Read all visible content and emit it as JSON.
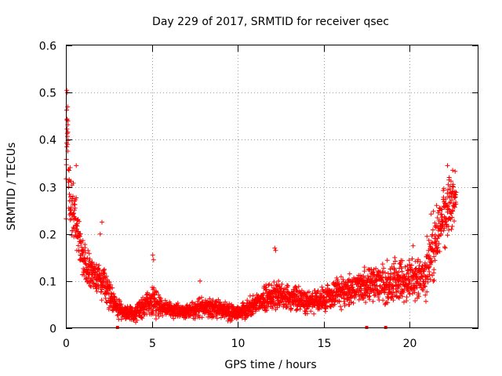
{
  "chart_data": {
    "type": "scatter",
    "title": "Day 229 of 2017, SRMTID for receiver qsec",
    "xlabel": "GPS time / hours",
    "ylabel": "SRMTID / TECUs",
    "xlim": [
      0,
      24
    ],
    "ylim": [
      0,
      0.6
    ],
    "x_ticks": [
      0,
      5,
      10,
      15,
      20
    ],
    "x_tick_labels": [
      "0",
      "5",
      "10",
      "15",
      "20"
    ],
    "y_ticks": [
      0,
      0.1,
      0.2,
      0.3,
      0.4,
      0.5,
      0.6
    ],
    "y_tick_labels": [
      "0",
      "0.1",
      "0.2",
      "0.3",
      "0.4",
      "0.5",
      "0.6"
    ],
    "grid": true,
    "marker": "+",
    "color": "#ff0000",
    "series": [
      {
        "name": "SRMTID",
        "trend": [
          [
            0.0,
            0.27,
            0.08
          ],
          [
            0.05,
            0.45,
            0.06
          ],
          [
            0.15,
            0.33,
            0.07
          ],
          [
            0.3,
            0.24,
            0.06
          ],
          [
            0.5,
            0.25,
            0.05
          ],
          [
            0.8,
            0.17,
            0.04
          ],
          [
            1.2,
            0.13,
            0.03
          ],
          [
            1.8,
            0.11,
            0.03
          ],
          [
            2.3,
            0.09,
            0.03
          ],
          [
            2.7,
            0.06,
            0.02
          ],
          [
            3.0,
            0.04,
            0.015
          ],
          [
            4.0,
            0.03,
            0.012
          ],
          [
            4.5,
            0.05,
            0.02
          ],
          [
            5.0,
            0.06,
            0.03
          ],
          [
            5.5,
            0.045,
            0.015
          ],
          [
            7.0,
            0.035,
            0.012
          ],
          [
            8.0,
            0.045,
            0.018
          ],
          [
            9.0,
            0.04,
            0.015
          ],
          [
            10.0,
            0.03,
            0.012
          ],
          [
            11.0,
            0.05,
            0.018
          ],
          [
            12.0,
            0.07,
            0.025
          ],
          [
            13.0,
            0.065,
            0.022
          ],
          [
            14.0,
            0.055,
            0.02
          ],
          [
            15.0,
            0.06,
            0.02
          ],
          [
            16.0,
            0.075,
            0.025
          ],
          [
            17.0,
            0.085,
            0.03
          ],
          [
            18.0,
            0.09,
            0.03
          ],
          [
            19.0,
            0.095,
            0.035
          ],
          [
            20.0,
            0.1,
            0.035
          ],
          [
            20.8,
            0.11,
            0.04
          ],
          [
            21.5,
            0.18,
            0.06
          ],
          [
            22.0,
            0.24,
            0.05
          ],
          [
            22.6,
            0.28,
            0.04
          ]
        ],
        "outliers": [
          [
            0.05,
            0.505
          ],
          [
            0.08,
            0.5
          ],
          [
            0.1,
            0.47
          ],
          [
            0.12,
            0.44
          ],
          [
            0.06,
            0.385
          ],
          [
            0.1,
            0.39
          ],
          [
            0.6,
            0.345
          ],
          [
            5.05,
            0.155
          ],
          [
            5.1,
            0.145
          ],
          [
            7.8,
            0.1
          ],
          [
            12.15,
            0.17
          ],
          [
            12.2,
            0.165
          ],
          [
            2.1,
            0.225
          ],
          [
            2.0,
            0.2
          ],
          [
            22.2,
            0.345
          ],
          [
            22.5,
            0.335
          ],
          [
            22.3,
            0.32
          ],
          [
            20.2,
            0.175
          ],
          [
            21.0,
            0.195
          ]
        ],
        "zero_points": [
          3.0,
          17.5,
          18.6
        ],
        "n_points": 2600,
        "x_range": [
          0.0,
          22.7
        ]
      }
    ]
  }
}
